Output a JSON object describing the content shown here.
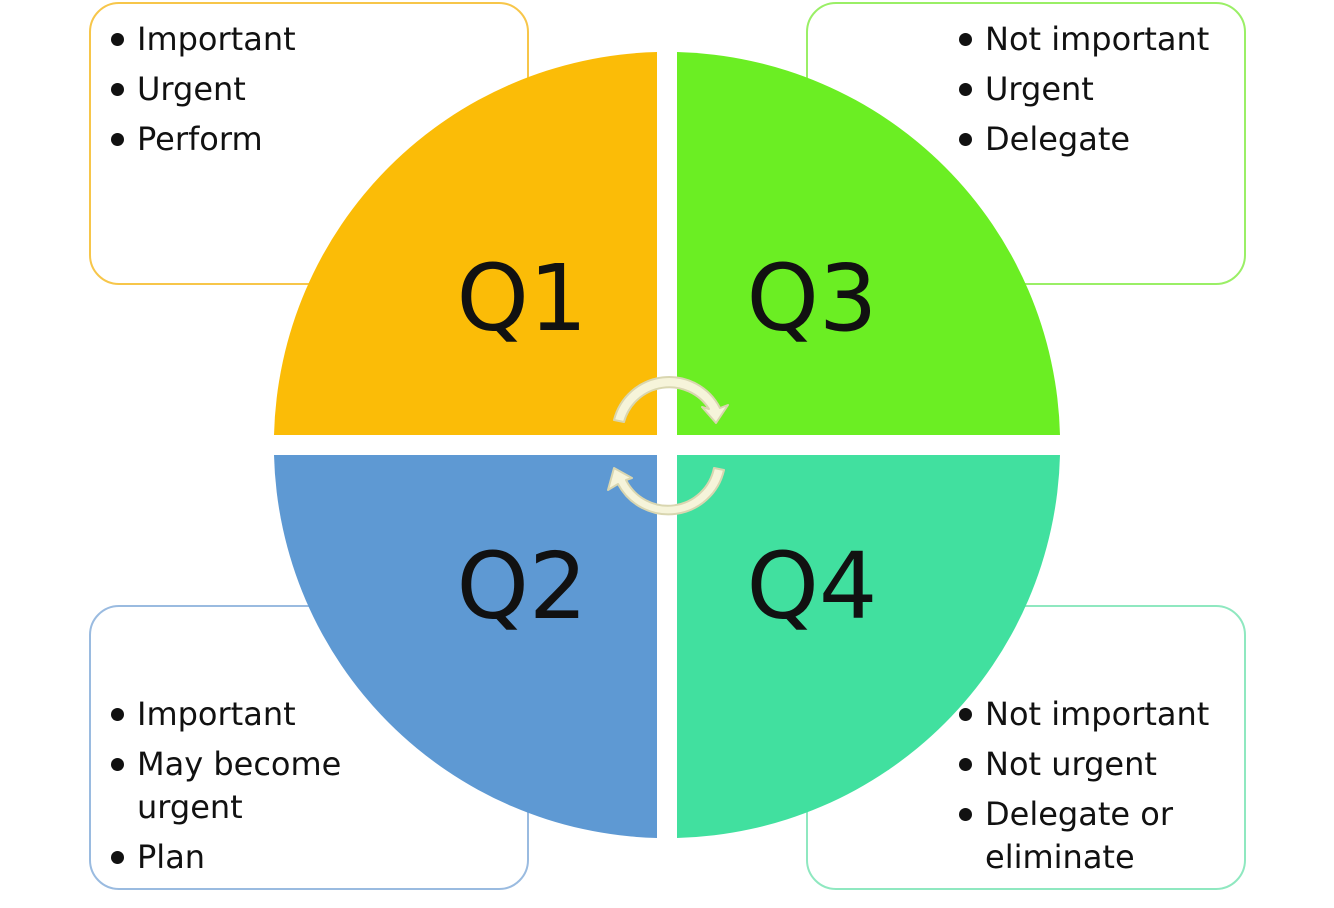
{
  "quadrants": {
    "q1": {
      "label": "Q1",
      "color": "#FBBC07",
      "border_color": "#F7C64A",
      "bullets": [
        "Important",
        "Urgent",
        "Perform"
      ]
    },
    "q3": {
      "label": "Q3",
      "color": "#6BEE23",
      "border_color": "#9AEF66",
      "bullets": [
        "Not important",
        "Urgent",
        "Delegate"
      ]
    },
    "q2": {
      "label": "Q2",
      "color": "#5E99D3",
      "border_color": "#9ABBE0",
      "bullets": [
        "Important",
        "May become urgent",
        "Plan"
      ]
    },
    "q4": {
      "label": "Q4",
      "color": "#41E09F",
      "border_color": "#8FE8C0",
      "bullets": [
        "Not important",
        "Not urgent",
        "Delegate or eliminate"
      ]
    }
  },
  "cycle_arrows_color": "#F6F4DA",
  "cycle_arrows_icon": "circular-arrows-icon"
}
